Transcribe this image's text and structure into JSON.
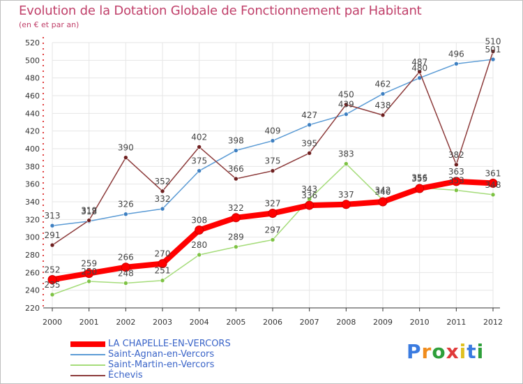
{
  "title": "Evolution de la Dotation Globale de Fonctionnement par Habitant",
  "subtitle": "(en € et par an)",
  "brand": {
    "letters": [
      "P",
      "r",
      "o",
      "x",
      "i",
      "t",
      "i"
    ],
    "colors": [
      "#3a7be0",
      "#f08c1c",
      "#2e9f3a",
      "#e03a3a",
      "#e0c020",
      "#3a7be0",
      "#2e9f3a"
    ]
  },
  "chart_data": {
    "type": "line",
    "title": "Evolution de la Dotation Globale de Fonctionnement par Habitant",
    "ylabel": "(en € et par an)",
    "x": [
      "2000",
      "2001",
      "2002",
      "2003",
      "2004",
      "2005",
      "2006",
      "2007",
      "2008",
      "2009",
      "2010",
      "2011",
      "2012"
    ],
    "ylim": [
      220,
      520
    ],
    "yticks": [
      "220",
      "240",
      "260",
      "280",
      "300",
      "320",
      "340",
      "360",
      "380",
      "400",
      "420",
      "440",
      "460",
      "480",
      "500",
      "520"
    ],
    "series": [
      {
        "name": "Saint-Agnan-en-Vercors",
        "color": "#5b9bd5",
        "marker": "#3d7fc1",
        "values": [
          313,
          318,
          326,
          332,
          375,
          398,
          409,
          427,
          439,
          462,
          480,
          496,
          501
        ],
        "labels": [
          "313",
          "318",
          "326",
          "332",
          "375",
          "398",
          "409",
          "427",
          "439",
          "462",
          "480",
          "496",
          "501"
        ]
      },
      {
        "name": "Saint-Martin-en-Vercors",
        "color": "#a5dc7a",
        "marker": "#7dc243",
        "values": [
          235,
          250,
          248,
          251,
          280,
          289,
          297,
          343,
          383,
          342,
          356,
          353,
          348
        ],
        "labels": [
          "235",
          "250",
          "248",
          "251",
          "280",
          "289",
          "297",
          "343",
          "383",
          "342",
          "356",
          "353",
          "348"
        ]
      },
      {
        "name": "Échevis",
        "color": "#8c3a3a",
        "marker": "#6e1f1f",
        "values": [
          291,
          319,
          390,
          352,
          402,
          366,
          375,
          395,
          450,
          438,
          487,
          382,
          510
        ],
        "labels": [
          "291",
          "319",
          "390",
          "352",
          "402",
          "366",
          "375",
          "395",
          "450",
          "438",
          "487",
          "382",
          "510"
        ]
      },
      {
        "name": "LA CHAPELLE-EN-VERCORS",
        "color": "#ff0000",
        "marker": "#ff0000",
        "values": [
          252,
          259,
          266,
          270,
          308,
          322,
          327,
          336,
          337,
          340,
          355,
          363,
          361
        ],
        "labels": [
          "252",
          "259",
          "266",
          "270",
          "308",
          "322",
          "327",
          "336",
          "337",
          "340",
          "355",
          "363",
          "361"
        ]
      }
    ],
    "legend": [
      "LA CHAPELLE-EN-VERCORS",
      "Saint-Agnan-en-Vercors",
      "Saint-Martin-en-Vercors",
      "Échevis"
    ]
  }
}
